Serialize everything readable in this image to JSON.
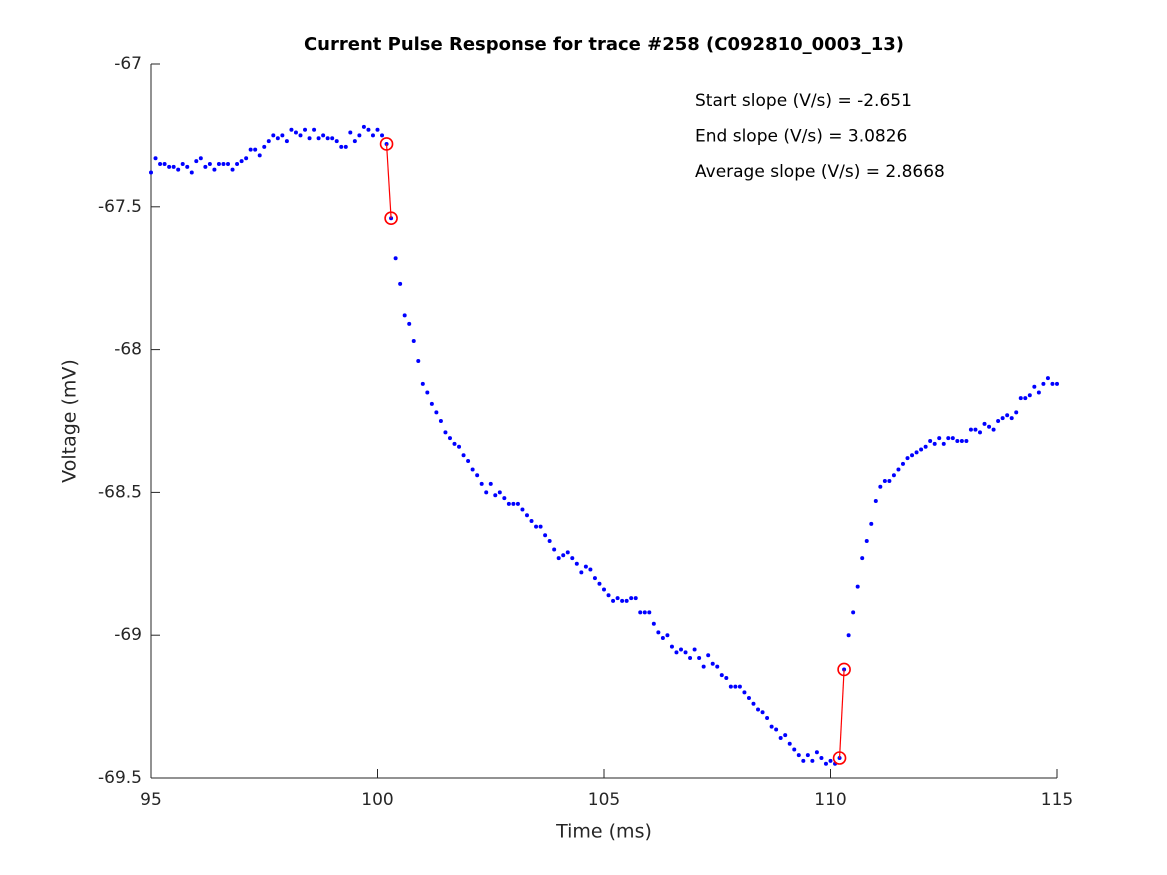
{
  "chart_data": {
    "type": "scatter",
    "title": "Current Pulse Response for trace #258 (C092810_0003_13)",
    "xlabel": "Time (ms)",
    "ylabel": "Voltage (mV)",
    "annotations": [
      "Start slope (V/s) = -2.651",
      "End slope (V/s) = 3.0826",
      "Average slope (V/s) = 2.8668"
    ],
    "xlim": [
      95,
      115
    ],
    "ylim": [
      -69.5,
      -67
    ],
    "xticks": [
      95,
      100,
      105,
      110,
      115
    ],
    "yticks": [
      -67,
      -67.5,
      -68,
      -68.5,
      -69,
      -69.5
    ],
    "grid": false,
    "series": [
      {
        "color": "#0000ff",
        "style": "dots",
        "x": [
          95.0,
          95.1,
          95.2,
          95.3,
          95.4,
          95.5,
          95.6,
          95.7,
          95.8,
          95.9,
          96.0,
          96.1,
          96.2,
          96.3,
          96.4,
          96.5,
          96.6,
          96.7,
          96.8,
          96.9,
          97.0,
          97.1,
          97.2,
          97.3,
          97.4,
          97.5,
          97.6,
          97.7,
          97.8,
          97.9,
          98.0,
          98.1,
          98.2,
          98.3,
          98.4,
          98.5,
          98.6,
          98.7,
          98.8,
          98.9,
          99.0,
          99.1,
          99.2,
          99.3,
          99.4,
          99.5,
          99.6,
          99.7,
          99.8,
          99.9,
          100.0,
          100.1,
          100.2,
          100.3,
          100.4,
          100.5,
          100.6,
          100.7,
          100.8,
          100.9,
          101.0,
          101.1,
          101.2,
          101.3,
          101.4,
          101.5,
          101.6,
          101.7,
          101.8,
          101.9,
          102.0,
          102.1,
          102.2,
          102.3,
          102.4,
          102.5,
          102.6,
          102.7,
          102.8,
          102.9,
          103.0,
          103.1,
          103.2,
          103.3,
          103.4,
          103.5,
          103.6,
          103.7,
          103.8,
          103.9,
          104.0,
          104.1,
          104.2,
          104.3,
          104.4,
          104.5,
          104.6,
          104.7,
          104.8,
          104.9,
          105.0,
          105.1,
          105.2,
          105.3,
          105.4,
          105.5,
          105.6,
          105.7,
          105.8,
          105.9,
          106.0,
          106.1,
          106.2,
          106.3,
          106.4,
          106.5,
          106.6,
          106.7,
          106.8,
          106.9,
          107.0,
          107.1,
          107.2,
          107.3,
          107.4,
          107.5,
          107.6,
          107.7,
          107.8,
          107.9,
          108.0,
          108.1,
          108.2,
          108.3,
          108.4,
          108.5,
          108.6,
          108.7,
          108.8,
          108.9,
          109.0,
          109.1,
          109.2,
          109.3,
          109.4,
          109.5,
          109.6,
          109.7,
          109.8,
          109.9,
          110.0,
          110.1,
          110.2,
          110.3,
          110.4,
          110.5,
          110.6,
          110.7,
          110.8,
          110.9,
          111.0,
          111.1,
          111.2,
          111.3,
          111.4,
          111.5,
          111.6,
          111.7,
          111.8,
          111.9,
          112.0,
          112.1,
          112.2,
          112.3,
          112.4,
          112.5,
          112.6,
          112.7,
          112.8,
          112.9,
          113.0,
          113.1,
          113.2,
          113.3,
          113.4,
          113.5,
          113.6,
          113.7,
          113.8,
          113.9,
          114.0,
          114.1,
          114.2,
          114.3,
          114.4,
          114.5,
          114.6,
          114.7,
          114.8,
          114.9,
          115.0
        ],
        "values": [
          -67.38,
          -67.33,
          -67.35,
          -67.35,
          -67.36,
          -67.36,
          -67.37,
          -67.35,
          -67.36,
          -67.38,
          -67.34,
          -67.33,
          -67.36,
          -67.35,
          -67.37,
          -67.35,
          -67.35,
          -67.35,
          -67.37,
          -67.35,
          -67.34,
          -67.33,
          -67.3,
          -67.3,
          -67.32,
          -67.29,
          -67.27,
          -67.25,
          -67.26,
          -67.25,
          -67.27,
          -67.23,
          -67.24,
          -67.25,
          -67.23,
          -67.26,
          -67.23,
          -67.26,
          -67.25,
          -67.26,
          -67.26,
          -67.27,
          -67.29,
          -67.29,
          -67.24,
          -67.27,
          -67.25,
          -67.22,
          -67.23,
          -67.25,
          -67.23,
          -67.25,
          -67.28,
          -67.54,
          -67.68,
          -67.77,
          -67.88,
          -67.91,
          -67.97,
          -68.04,
          -68.12,
          -68.15,
          -68.19,
          -68.22,
          -68.25,
          -68.29,
          -68.31,
          -68.33,
          -68.34,
          -68.37,
          -68.39,
          -68.42,
          -68.44,
          -68.47,
          -68.5,
          -68.47,
          -68.51,
          -68.5,
          -68.52,
          -68.54,
          -68.54,
          -68.54,
          -68.56,
          -68.58,
          -68.6,
          -68.62,
          -68.62,
          -68.65,
          -68.67,
          -68.7,
          -68.73,
          -68.72,
          -68.71,
          -68.73,
          -68.75,
          -68.78,
          -68.76,
          -68.77,
          -68.8,
          -68.82,
          -68.84,
          -68.86,
          -68.88,
          -68.87,
          -68.88,
          -68.88,
          -68.87,
          -68.87,
          -68.92,
          -68.92,
          -68.92,
          -68.96,
          -68.99,
          -69.01,
          -69.0,
          -69.04,
          -69.06,
          -69.05,
          -69.06,
          -69.08,
          -69.05,
          -69.08,
          -69.11,
          -69.07,
          -69.1,
          -69.11,
          -69.14,
          -69.15,
          -69.18,
          -69.18,
          -69.18,
          -69.2,
          -69.22,
          -69.24,
          -69.26,
          -69.27,
          -69.29,
          -69.32,
          -69.33,
          -69.36,
          -69.35,
          -69.38,
          -69.4,
          -69.42,
          -69.44,
          -69.42,
          -69.44,
          -69.41,
          -69.43,
          -69.45,
          -69.44,
          -69.45,
          -69.43,
          -69.12,
          -69.0,
          -68.92,
          -68.83,
          -68.73,
          -68.67,
          -68.61,
          -68.53,
          -68.48,
          -68.46,
          -68.46,
          -68.44,
          -68.42,
          -68.4,
          -68.38,
          -68.37,
          -68.36,
          -68.35,
          -68.34,
          -68.32,
          -68.33,
          -68.31,
          -68.33,
          -68.31,
          -68.31,
          -68.32,
          -68.32,
          -68.32,
          -68.28,
          -68.28,
          -68.29,
          -68.26,
          -68.27,
          -68.28,
          -68.25,
          -68.24,
          -68.23,
          -68.24,
          -68.22,
          -68.17,
          -68.17,
          -68.16,
          -68.13,
          -68.15,
          -68.12,
          -68.1,
          -68.12,
          -68.12
        ]
      },
      {
        "color": "#ff0000",
        "style": "circle-line",
        "x": [
          100.2,
          100.3
        ],
        "values": [
          -67.28,
          -67.54
        ]
      },
      {
        "color": "#ff0000",
        "style": "circle-line",
        "x": [
          110.2,
          110.3
        ],
        "values": [
          -69.43,
          -69.12
        ]
      }
    ]
  }
}
